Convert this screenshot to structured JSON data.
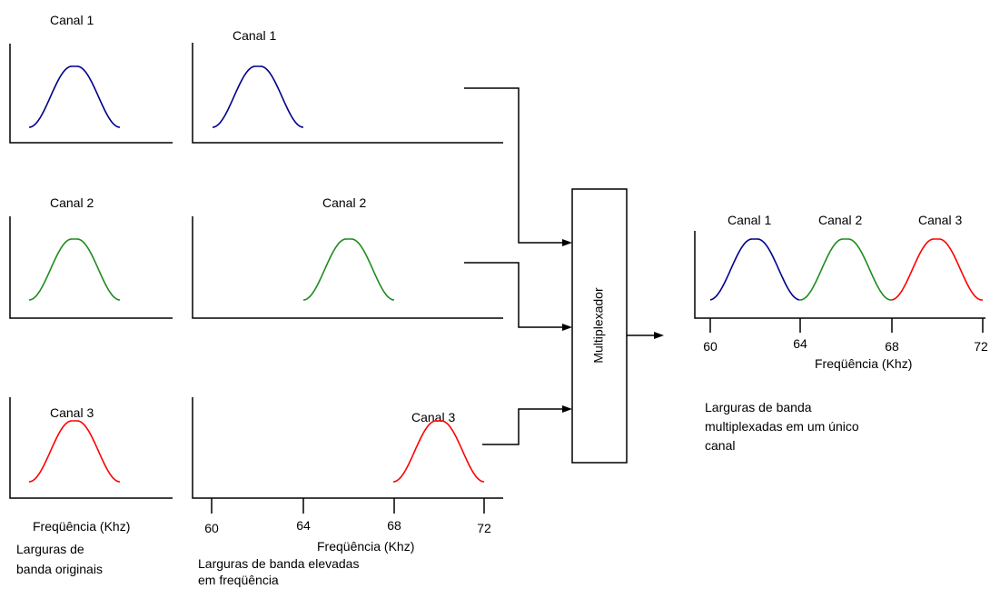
{
  "colors": {
    "canal_1": "#00008b",
    "canal_2": "#1e8c1e",
    "canal_3": "#ff0000"
  },
  "original": {
    "channel_labels": [
      "Canal 1",
      "Canal 2",
      "Canal 3"
    ],
    "xlabel": "Freqüência (Khz)",
    "caption_lines": [
      "Larguras de",
      "banda originais"
    ]
  },
  "shifted": {
    "channel_labels": [
      "Canal 1",
      "Canal 2",
      "Canal 3"
    ],
    "ticks": [
      "60",
      "64",
      "68",
      "72"
    ],
    "xlabel": "Freqüência (Khz)",
    "caption_lines": [
      "Larguras de banda elevadas",
      "em freqüência"
    ]
  },
  "multiplexer": {
    "label": "Multiplexador"
  },
  "combined": {
    "channel_labels": [
      "Canal  1",
      "Canal  2",
      "Canal  3"
    ],
    "ticks": [
      "60",
      "64",
      "68",
      "72"
    ],
    "xlabel": "Freqüência  (Khz)",
    "caption_lines": [
      "Larguras de banda",
      "multiplexadas em um único",
      "canal"
    ]
  }
}
